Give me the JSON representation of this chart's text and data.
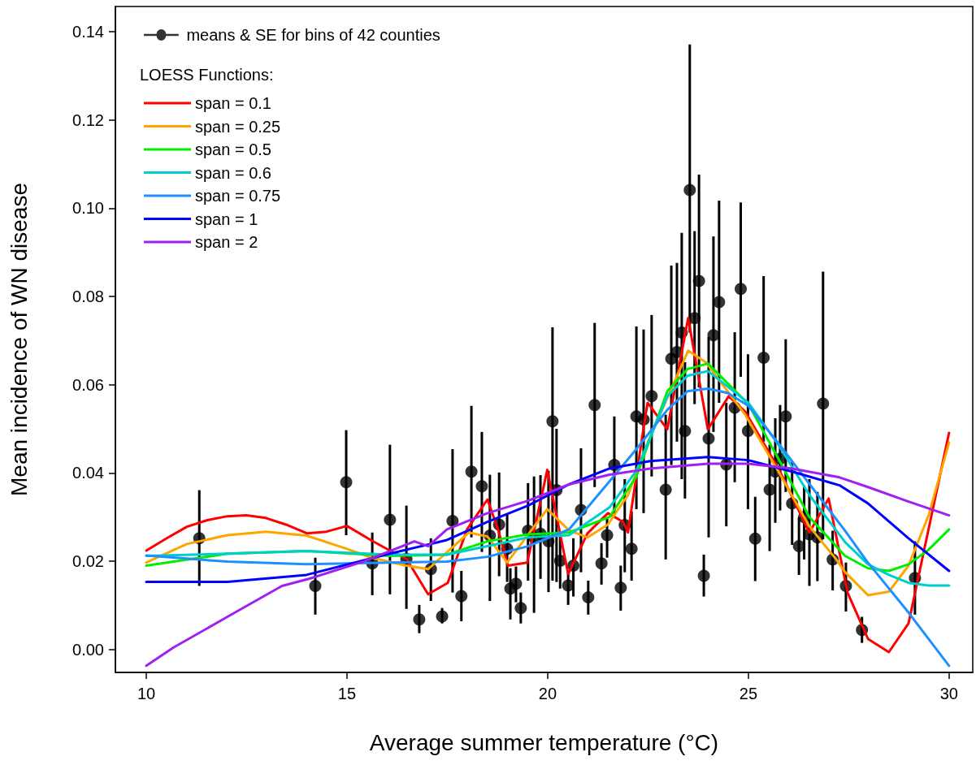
{
  "chart_data": {
    "type": "line",
    "xlabel": "Average summer temperature (°C)",
    "ylabel": "Mean incidence of WN disease",
    "legend_title": "LOESS Functions:",
    "legend": "top left",
    "grid": false,
    "xlim": [
      9.23,
      30.59
    ],
    "xticks": [
      10,
      15,
      20,
      25,
      30
    ],
    "ylim": [
      -0.0052,
      0.1457
    ],
    "yticks": [
      {
        "value": 0,
        "label": "0.00"
      },
      {
        "value": 0.02,
        "label": "0.02"
      },
      {
        "value": 0.04,
        "label": "0.04"
      },
      {
        "value": 0.06,
        "label": "0.06"
      },
      {
        "value": 0.08,
        "label": "0.08"
      },
      {
        "value": 0.1,
        "label": "0.10"
      },
      {
        "value": 0.12,
        "label": "0.12"
      },
      {
        "value": 0.14,
        "label": "0.14"
      }
    ],
    "series": [
      {
        "name": "means & SE for bins of 42 counties",
        "type": "scatter",
        "marker": "circle",
        "color": "#000000",
        "x": [
          11.32,
          14.21,
          14.98,
          15.63,
          16.07,
          16.48,
          16.8,
          17.09,
          17.37,
          17.63,
          17.85,
          18.1,
          18.36,
          18.56,
          18.79,
          18.99,
          19.07,
          19.21,
          19.33,
          19.51,
          19.66,
          19.82,
          20.02,
          20.12,
          20.22,
          20.31,
          20.51,
          20.64,
          20.83,
          21.01,
          21.17,
          21.34,
          21.48,
          21.66,
          21.82,
          21.92,
          22.09,
          22.21,
          22.39,
          22.59,
          22.94,
          23.08,
          23.22,
          23.34,
          23.42,
          23.54,
          23.66,
          23.77,
          23.89,
          24.01,
          24.13,
          24.27,
          24.45,
          24.66,
          24.81,
          24.99,
          25.17,
          25.38,
          25.53,
          25.67,
          25.79,
          25.93,
          26.09,
          26.26,
          26.39,
          26.52,
          26.72,
          26.86,
          27.1,
          27.43,
          27.83,
          29.15
        ],
        "values": [
          0.0252,
          0.0144,
          0.0379,
          0.0195,
          0.0294,
          0.0205,
          0.0068,
          0.0182,
          0.0075,
          0.0291,
          0.0121,
          0.0403,
          0.037,
          0.0258,
          0.0283,
          0.0228,
          0.0138,
          0.0149,
          0.0094,
          0.0269,
          0.0254,
          0.0262,
          0.0245,
          0.0517,
          0.0361,
          0.0201,
          0.0145,
          0.019,
          0.0316,
          0.0118,
          0.0554,
          0.0195,
          0.0259,
          0.0418,
          0.014,
          0.0282,
          0.0228,
          0.0528,
          0.0521,
          0.0574,
          0.0362,
          0.0659,
          0.0674,
          0.0718,
          0.0495,
          0.1041,
          0.0751,
          0.0835,
          0.0167,
          0.0478,
          0.0712,
          0.0787,
          0.0419,
          0.0548,
          0.0817,
          0.0495,
          0.0251,
          0.0661,
          0.0362,
          0.0403,
          0.0432,
          0.0528,
          0.0331,
          0.0234,
          0.03,
          0.0261,
          0.0254,
          0.0557,
          0.0204,
          0.0144,
          0.0044,
          0.0162
        ],
        "errors": [
          [
            0.0144,
            0.0361
          ],
          [
            0.0079,
            0.0208
          ],
          [
            0.0259,
            0.0497
          ],
          [
            0.0123,
            0.0265
          ],
          [
            0.0125,
            0.0464
          ],
          [
            0.0092,
            0.0326
          ],
          [
            0.0037,
            0.0101
          ],
          [
            0.011,
            0.0252
          ],
          [
            0.0059,
            0.0094
          ],
          [
            0.0129,
            0.0454
          ],
          [
            0.0064,
            0.0178
          ],
          [
            0.0254,
            0.0552
          ],
          [
            0.0221,
            0.0493
          ],
          [
            0.011,
            0.0396
          ],
          [
            0.0166,
            0.0401
          ],
          [
            0.0153,
            0.0307
          ],
          [
            0.0068,
            0.0184
          ],
          [
            0.0107,
            0.0188
          ],
          [
            0.0059,
            0.0129
          ],
          [
            0.0156,
            0.0377
          ],
          [
            0.0083,
            0.0392
          ],
          [
            0.016,
            0.0395
          ],
          [
            0.013,
            0.0405
          ],
          [
            0.0156,
            0.073
          ],
          [
            0.0153,
            0.05
          ],
          [
            0.0138,
            0.0263
          ],
          [
            0.0101,
            0.0178
          ],
          [
            0.012,
            0.0252
          ],
          [
            0.0175,
            0.0456
          ],
          [
            0.0079,
            0.0156
          ],
          [
            0.0368,
            0.074
          ],
          [
            0.0147,
            0.0241
          ],
          [
            0.0208,
            0.03
          ],
          [
            0.0307,
            0.0528
          ],
          [
            0.0088,
            0.019
          ],
          [
            0.0175,
            0.0386
          ],
          [
            0.0156,
            0.0313
          ],
          [
            0.0318,
            0.0732
          ],
          [
            0.0309,
            0.0725
          ],
          [
            0.0392,
            0.0758
          ],
          [
            0.0204,
            0.0532
          ],
          [
            0.0418,
            0.087
          ],
          [
            0.0471,
            0.0876
          ],
          [
            0.0386,
            0.0944
          ],
          [
            0.0342,
            0.0651
          ],
          [
            0.0718,
            0.1371
          ],
          [
            0.0556,
            0.0948
          ],
          [
            0.0594,
            0.1076
          ],
          [
            0.012,
            0.0215
          ],
          [
            0.0254,
            0.0708
          ],
          [
            0.0493,
            0.0936
          ],
          [
            0.0559,
            0.1017
          ],
          [
            0.0279,
            0.0559
          ],
          [
            0.0379,
            0.0719
          ],
          [
            0.0618,
            0.1013
          ],
          [
            0.0318,
            0.0669
          ],
          [
            0.0155,
            0.0346
          ],
          [
            0.0471,
            0.0846
          ],
          [
            0.0223,
            0.0464
          ],
          [
            0.0287,
            0.0524
          ],
          [
            0.0315,
            0.0554
          ],
          [
            0.0357,
            0.0703
          ],
          [
            0.0237,
            0.0425
          ],
          [
            0.0169,
            0.03
          ],
          [
            0.0204,
            0.0372
          ],
          [
            0.0144,
            0.0386
          ],
          [
            0.0155,
            0.0357
          ],
          [
            0.025,
            0.0856
          ],
          [
            0.0134,
            0.0269
          ],
          [
            0.0086,
            0.0197
          ],
          [
            0.0015,
            0.0074
          ],
          [
            0.0079,
            0.0245
          ]
        ]
      },
      {
        "name": "span = 0.1",
        "marker": "none",
        "color": "#ff0000",
        "x": [
          10,
          10.51,
          11.01,
          11.52,
          12.02,
          12.49,
          12.98,
          13.48,
          14.01,
          14.49,
          15,
          15.61,
          16.07,
          16.48,
          17.02,
          17.51,
          17.99,
          18.5,
          18.77,
          19.01,
          19.49,
          19.99,
          20.51,
          20.99,
          21.5,
          21.88,
          22,
          22.41,
          22.49,
          22.98,
          23.5,
          23.99,
          24.51,
          24.92,
          25.75,
          26.52,
          27,
          27.47,
          27.98,
          28.5,
          28.99,
          30
        ],
        "values": [
          0.0224,
          0.0252,
          0.0278,
          0.0293,
          0.0302,
          0.0304,
          0.0298,
          0.0283,
          0.0263,
          0.0267,
          0.028,
          0.0247,
          0.0224,
          0.0206,
          0.0125,
          0.0151,
          0.0272,
          0.034,
          0.027,
          0.019,
          0.0197,
          0.0407,
          0.0171,
          0.0263,
          0.0309,
          0.0289,
          0.0265,
          0.0515,
          0.0559,
          0.0499,
          0.0751,
          0.0499,
          0.0574,
          0.0539,
          0.041,
          0.0265,
          0.0342,
          0.0129,
          0.0024,
          -0.0006,
          0.0059,
          0.0491
        ]
      },
      {
        "name": "span = 0.25",
        "marker": "none",
        "color": "#ffa500",
        "x": [
          10,
          11.01,
          12.02,
          12.98,
          13.99,
          15,
          15.61,
          16.48,
          17.02,
          18.04,
          18.5,
          18.99,
          19.99,
          20.53,
          20.99,
          21.5,
          22,
          22.51,
          23.5,
          23.95,
          24.92,
          25.75,
          26.52,
          27.19,
          27.41,
          27.98,
          28.5,
          28.99,
          29.49,
          30
        ],
        "values": [
          0.0197,
          0.0239,
          0.0259,
          0.0267,
          0.0258,
          0.0228,
          0.0208,
          0.019,
          0.0182,
          0.0265,
          0.0256,
          0.0197,
          0.0318,
          0.027,
          0.0254,
          0.0283,
          0.035,
          0.0473,
          0.0677,
          0.065,
          0.0532,
          0.0403,
          0.0279,
          0.0204,
          0.0175,
          0.0123,
          0.0131,
          0.019,
          0.0304,
          0.0469
        ]
      },
      {
        "name": "span = 0.5",
        "marker": "none",
        "color": "#00ee00",
        "x": [
          10,
          12.02,
          13.99,
          16.07,
          17.49,
          18.5,
          19.51,
          20.53,
          21.54,
          22.21,
          22.98,
          23.48,
          23.99,
          25,
          25.75,
          26.52,
          27.41,
          27.98,
          28.5,
          28.99,
          29.49,
          30
        ],
        "values": [
          0.019,
          0.0217,
          0.0223,
          0.0212,
          0.0215,
          0.0245,
          0.0261,
          0.0265,
          0.03,
          0.0392,
          0.0585,
          0.0635,
          0.0648,
          0.0556,
          0.0432,
          0.03,
          0.0212,
          0.0184,
          0.0178,
          0.0193,
          0.0226,
          0.0272
        ]
      },
      {
        "name": "span = 0.6",
        "marker": "none",
        "color": "#00cdcd",
        "x": [
          10,
          12.02,
          13.99,
          16.07,
          17.49,
          18.5,
          19.51,
          20.53,
          21.54,
          22.21,
          22.98,
          23.48,
          23.99,
          25,
          25.75,
          26.52,
          27.41,
          27.98,
          28.5,
          28.99,
          29.49,
          30
        ],
        "values": [
          0.0212,
          0.0217,
          0.0223,
          0.0215,
          0.0215,
          0.0234,
          0.0254,
          0.0259,
          0.0322,
          0.0405,
          0.0574,
          0.062,
          0.0631,
          0.0559,
          0.0464,
          0.035,
          0.0243,
          0.0193,
          0.0169,
          0.0151,
          0.0145,
          0.0145
        ]
      },
      {
        "name": "span = 0.75",
        "marker": "none",
        "color": "#1e90ff",
        "x": [
          10,
          12.02,
          13.99,
          16.07,
          17.49,
          18.5,
          19.51,
          20.53,
          21.54,
          22.21,
          22.98,
          23.48,
          23.99,
          24.49,
          25,
          25.75,
          26.52,
          27.41,
          27.96,
          28.97,
          30
        ],
        "values": [
          0.0213,
          0.0199,
          0.0193,
          0.0197,
          0.0199,
          0.021,
          0.0234,
          0.0272,
          0.0381,
          0.0454,
          0.0543,
          0.0585,
          0.0591,
          0.0581,
          0.0552,
          0.0467,
          0.0375,
          0.0269,
          0.0199,
          0.0086,
          -0.0037
        ]
      },
      {
        "name": "span = 1",
        "marker": "none",
        "color": "#0000ff",
        "x": [
          10,
          12.02,
          13.99,
          16.07,
          17.49,
          18.5,
          19.51,
          20.53,
          21.54,
          22.55,
          23.99,
          25,
          26.09,
          27.27,
          27.98,
          28.99,
          30
        ],
        "values": [
          0.0153,
          0.0153,
          0.0169,
          0.0217,
          0.0248,
          0.0289,
          0.0326,
          0.0374,
          0.041,
          0.0427,
          0.0436,
          0.0429,
          0.0403,
          0.0372,
          0.0331,
          0.0252,
          0.0178
        ]
      },
      {
        "name": "span = 2",
        "marker": "none",
        "color": "#a020f0",
        "x": [
          10,
          10.67,
          12.02,
          13.38,
          14.05,
          15.4,
          16.68,
          17.02,
          17.49,
          18.5,
          19.51,
          20.53,
          21.54,
          22.55,
          23.99,
          25,
          26.09,
          27.27,
          27.98,
          28.99,
          30
        ],
        "values": [
          -0.0037,
          0.0004,
          0.0074,
          0.0144,
          0.016,
          0.0199,
          0.0245,
          0.0234,
          0.0272,
          0.0309,
          0.0337,
          0.0374,
          0.0396,
          0.041,
          0.0421,
          0.0421,
          0.041,
          0.039,
          0.0368,
          0.0335,
          0.0304
        ]
      }
    ]
  }
}
